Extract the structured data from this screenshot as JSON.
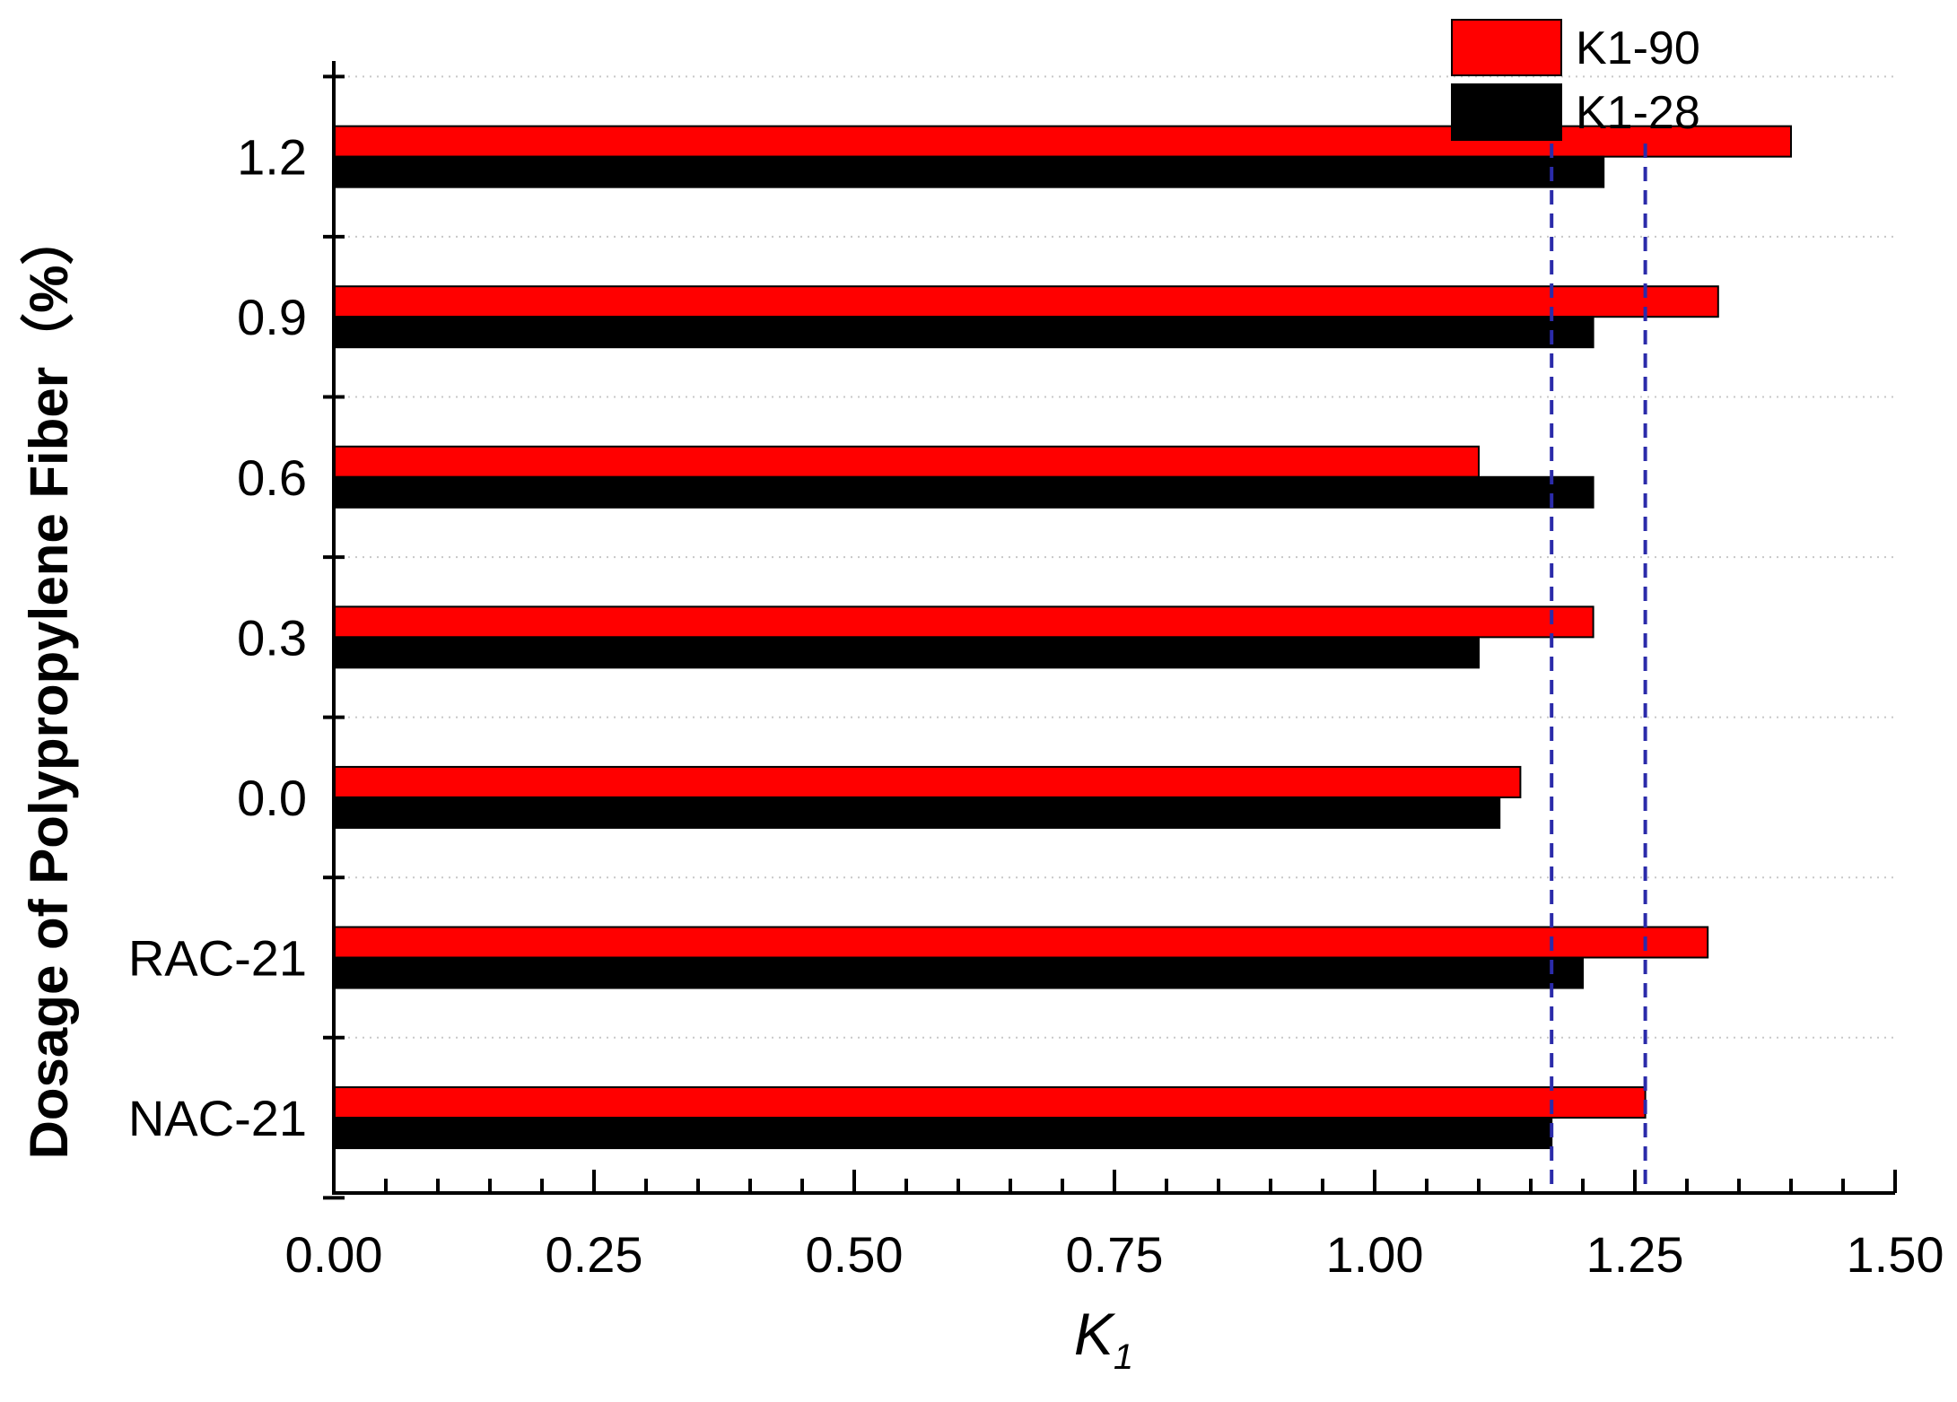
{
  "chart_data": {
    "type": "bar",
    "orientation": "horizontal",
    "title": "",
    "xlabel": "K",
    "xlabel_subscript": "1",
    "ylabel": "Dosage of Polypropylene Fiber（%）",
    "categories": [
      "NAC-21",
      "RAC-21",
      "0.0",
      "0.3",
      "0.6",
      "0.9",
      "1.2"
    ],
    "series": [
      {
        "name": "K1-90",
        "color": "#ff0000",
        "values": [
          1.26,
          1.32,
          1.14,
          1.21,
          1.1,
          1.33,
          1.4
        ]
      },
      {
        "name": "K1-28",
        "color": "#000000",
        "values": [
          1.17,
          1.2,
          1.12,
          1.1,
          1.21,
          1.21,
          1.22
        ]
      }
    ],
    "xlim": [
      0,
      1.5
    ],
    "xticks": [
      "0.00",
      "0.25",
      "0.50",
      "0.75",
      "1.00",
      "1.25",
      "1.50"
    ],
    "reference_lines": [
      {
        "value": 1.17,
        "color": "#2b2baa",
        "style": "dashed"
      },
      {
        "value": 1.26,
        "color": "#2b2baa",
        "style": "dashed"
      }
    ],
    "grid": "horizontal-dotted",
    "legend_position": "top-right"
  }
}
